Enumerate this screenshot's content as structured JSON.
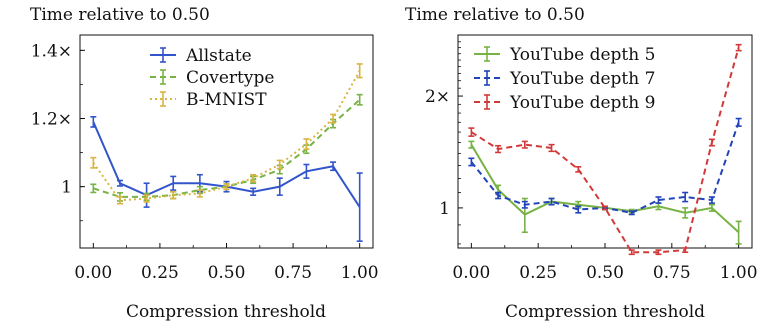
{
  "chart_data": [
    {
      "type": "line",
      "title": "Time relative to 0.50",
      "xlabel": "Compression threshold",
      "ylabel": "",
      "xlim": [
        -0.05,
        1.05
      ],
      "ylim": [
        0.82,
        1.445
      ],
      "y_ticks": [
        {
          "value": 1.0,
          "label": "1"
        },
        {
          "value": 1.2,
          "label": "1.2×"
        },
        {
          "value": 1.4,
          "label": "1.4×"
        }
      ],
      "x_ticks": [
        {
          "value": 0.0,
          "label": "0.00"
        },
        {
          "value": 0.25,
          "label": "0.25"
        },
        {
          "value": 0.5,
          "label": "0.50"
        },
        {
          "value": 0.75,
          "label": "0.75"
        },
        {
          "value": 1.0,
          "label": "1.00"
        }
      ],
      "legend_position": "top-right",
      "series": [
        {
          "name": "Allstate",
          "color": "#3355cc",
          "dash": "solid",
          "x": [
            0.0,
            0.1,
            0.2,
            0.3,
            0.4,
            0.5,
            0.6,
            0.7,
            0.8,
            0.9,
            1.0
          ],
          "y": [
            1.19,
            1.01,
            0.975,
            1.01,
            1.01,
            1.0,
            0.985,
            1.0,
            1.045,
            1.06,
            0.94
          ],
          "err": [
            0.015,
            0.008,
            0.035,
            0.02,
            0.025,
            0.015,
            0.01,
            0.025,
            0.02,
            0.012,
            0.1
          ]
        },
        {
          "name": "Covertype",
          "color": "#77b344",
          "dash": "dashed",
          "x": [
            0.0,
            0.1,
            0.2,
            0.3,
            0.4,
            0.5,
            0.6,
            0.7,
            0.8,
            0.9,
            1.0
          ],
          "y": [
            0.995,
            0.97,
            0.97,
            0.975,
            0.99,
            1.0,
            1.02,
            1.05,
            1.11,
            1.185,
            1.255
          ],
          "err": [
            0.012,
            0.012,
            0.01,
            0.01,
            0.01,
            0.008,
            0.01,
            0.012,
            0.012,
            0.012,
            0.015
          ]
        },
        {
          "name": "B-MNIST",
          "color": "#d8b440",
          "dash": "dotted",
          "x": [
            0.0,
            0.1,
            0.2,
            0.3,
            0.4,
            0.5,
            0.6,
            0.7,
            0.8,
            0.9,
            1.0
          ],
          "y": [
            1.07,
            0.96,
            0.965,
            0.975,
            0.98,
            1.0,
            1.025,
            1.065,
            1.125,
            1.2,
            1.34
          ],
          "err": [
            0.015,
            0.01,
            0.01,
            0.01,
            0.01,
            0.008,
            0.01,
            0.012,
            0.015,
            0.012,
            0.02
          ]
        }
      ]
    },
    {
      "type": "line",
      "title": "Time relative to 0.50",
      "xlabel": "Compression threshold",
      "ylabel": "",
      "y_scale": "log",
      "xlim": [
        -0.05,
        1.05
      ],
      "ylim": [
        0.78,
        2.92
      ],
      "y_ticks": [
        {
          "value": 1.0,
          "label": "1"
        },
        {
          "value": 2.0,
          "label": "2×"
        }
      ],
      "x_ticks": [
        {
          "value": 0.0,
          "label": "0.00"
        },
        {
          "value": 0.25,
          "label": "0.25"
        },
        {
          "value": 0.5,
          "label": "0.50"
        },
        {
          "value": 0.75,
          "label": "0.75"
        },
        {
          "value": 1.0,
          "label": "1.00"
        }
      ],
      "legend_position": "top-left",
      "series": [
        {
          "name": "YouTube depth 5",
          "color": "#77b344",
          "dash": "solid",
          "x": [
            0.0,
            0.1,
            0.2,
            0.3,
            0.4,
            0.5,
            0.6,
            0.7,
            0.8,
            0.9,
            1.0
          ],
          "y": [
            1.48,
            1.12,
            0.96,
            1.04,
            1.02,
            1.0,
            0.98,
            1.01,
            0.97,
            1.0,
            0.86
          ],
          "err": [
            0.03,
            0.03,
            0.1,
            0.02,
            0.02,
            0.01,
            0.01,
            0.02,
            0.03,
            0.02,
            0.06
          ]
        },
        {
          "name": "YouTube depth 7",
          "color": "#2244bb",
          "dash": "dashed",
          "x": [
            0.0,
            0.1,
            0.2,
            0.3,
            0.4,
            0.5,
            0.6,
            0.7,
            0.8,
            0.9,
            1.0
          ],
          "y": [
            1.33,
            1.08,
            1.02,
            1.04,
            0.99,
            1.0,
            0.97,
            1.05,
            1.07,
            1.05,
            1.7
          ],
          "err": [
            0.03,
            0.02,
            0.02,
            0.02,
            0.02,
            0.01,
            0.01,
            0.02,
            0.03,
            0.02,
            0.04
          ]
        },
        {
          "name": "YouTube depth 9",
          "color": "#d23a3a",
          "dash": "dashed",
          "x": [
            0.0,
            0.1,
            0.2,
            0.3,
            0.4,
            0.5,
            0.6,
            0.7,
            0.8,
            0.9,
            1.0
          ],
          "y": [
            1.6,
            1.44,
            1.48,
            1.45,
            1.27,
            1.0,
            0.76,
            0.76,
            0.77,
            1.5,
            2.7
          ],
          "err": [
            0.04,
            0.03,
            0.03,
            0.03,
            0.02,
            0.01,
            0.01,
            0.01,
            0.01,
            0.03,
            0.05
          ]
        }
      ]
    }
  ]
}
